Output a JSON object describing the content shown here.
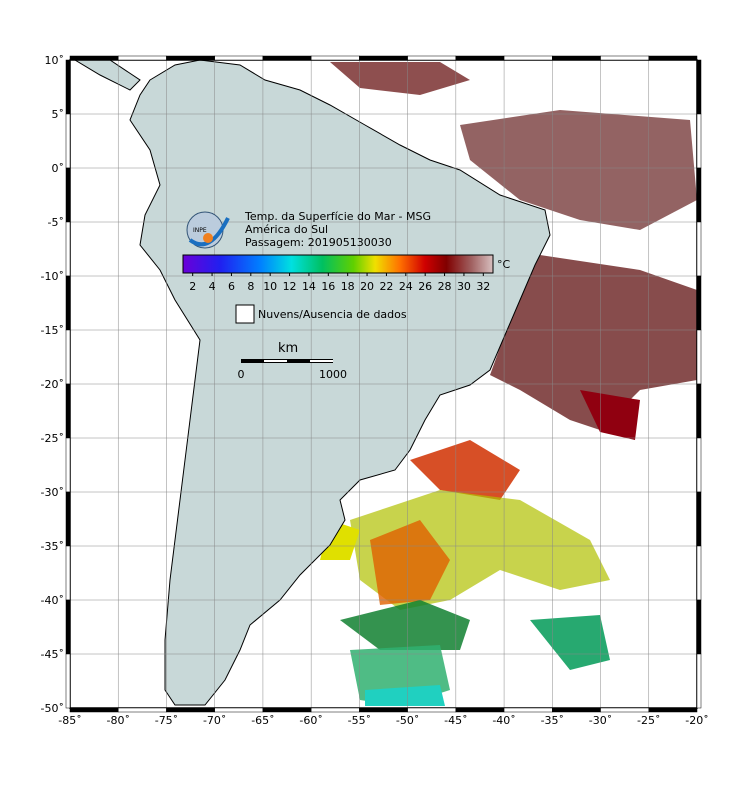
{
  "map": {
    "title_lines": [
      "Temp. da Superfície do Mar - MSG",
      "América do Sul",
      "Passagem: 201905130030"
    ],
    "logo_text": "INPE",
    "xlim": [
      -85,
      -20
    ],
    "ylim": [
      -50,
      10
    ],
    "xticks": [
      {
        "value": -85,
        "label": "-85˚"
      },
      {
        "value": -80,
        "label": "-80˚"
      },
      {
        "value": -75,
        "label": "-75˚"
      },
      {
        "value": -70,
        "label": "-70˚"
      },
      {
        "value": -65,
        "label": "-65˚"
      },
      {
        "value": -60,
        "label": "-60˚"
      },
      {
        "value": -55,
        "label": "-55˚"
      },
      {
        "value": -50,
        "label": "-50˚"
      },
      {
        "value": -45,
        "label": "-45˚"
      },
      {
        "value": -40,
        "label": "-40˚"
      },
      {
        "value": -35,
        "label": "-35˚"
      },
      {
        "value": -30,
        "label": "-30˚"
      },
      {
        "value": -25,
        "label": "-25˚"
      },
      {
        "value": -20,
        "label": "-20˚"
      }
    ],
    "yticks": [
      {
        "value": 10,
        "label": "10˚"
      },
      {
        "value": 5,
        "label": "5˚"
      },
      {
        "value": 0,
        "label": "0˚"
      },
      {
        "value": -5,
        "label": "-5˚"
      },
      {
        "value": -10,
        "label": "-10˚"
      },
      {
        "value": -15,
        "label": "-15˚"
      },
      {
        "value": -20,
        "label": "-20˚"
      },
      {
        "value": -25,
        "label": "-25˚"
      },
      {
        "value": -30,
        "label": "-30˚"
      },
      {
        "value": -35,
        "label": "-35˚"
      },
      {
        "value": -40,
        "label": "-40˚"
      },
      {
        "value": -45,
        "label": "-45˚"
      },
      {
        "value": -50,
        "label": "-50˚"
      }
    ],
    "colorbar": {
      "clim": [
        1,
        33
      ],
      "ticks": [
        2,
        4,
        6,
        8,
        10,
        12,
        14,
        16,
        18,
        20,
        22,
        24,
        26,
        28,
        30,
        32
      ],
      "unit": "°C"
    },
    "legend": "Nuvens/Ausencia de dados",
    "scale_bar": {
      "unit": "km",
      "labels": [
        "0",
        "1000"
      ]
    }
  }
}
